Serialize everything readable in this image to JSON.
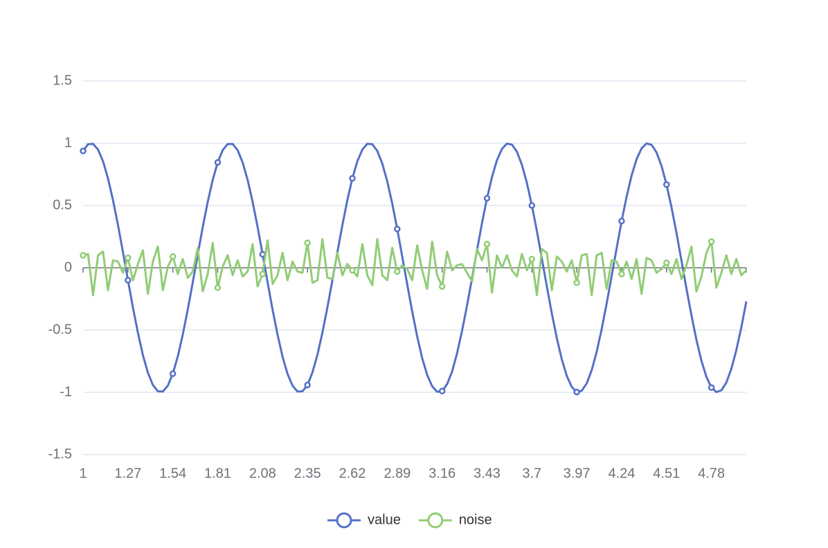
{
  "chart_data": {
    "type": "line",
    "categories": [
      "1",
      "1.03",
      "1.06",
      "1.09",
      "1.12",
      "1.15",
      "1.18",
      "1.21",
      "1.24",
      "1.27",
      "1.3",
      "1.33",
      "1.36",
      "1.39",
      "1.42",
      "1.45",
      "1.48",
      "1.51",
      "1.54",
      "1.57",
      "1.6",
      "1.63",
      "1.66",
      "1.69",
      "1.72",
      "1.75",
      "1.78",
      "1.81",
      "1.84",
      "1.87",
      "1.9",
      "1.93",
      "1.96",
      "1.99",
      "2.02",
      "2.05",
      "2.08",
      "2.11",
      "2.14",
      "2.17",
      "2.2",
      "2.23",
      "2.26",
      "2.29",
      "2.32",
      "2.35",
      "2.38",
      "2.41",
      "2.44",
      "2.47",
      "2.5",
      "2.53",
      "2.56",
      "2.59",
      "2.62",
      "2.65",
      "2.68",
      "2.71",
      "2.74",
      "2.77",
      "2.8",
      "2.83",
      "2.86",
      "2.89",
      "2.92",
      "2.95",
      "2.98",
      "3.01",
      "3.04",
      "3.07",
      "3.1",
      "3.13",
      "3.16",
      "3.19",
      "3.22",
      "3.25",
      "3.28",
      "3.31",
      "3.34",
      "3.37",
      "3.4",
      "3.43",
      "3.46",
      "3.49",
      "3.52",
      "3.55",
      "3.58",
      "3.61",
      "3.64",
      "3.67",
      "3.7",
      "3.73",
      "3.76",
      "3.79",
      "3.82",
      "3.85",
      "3.88",
      "3.91",
      "3.94",
      "3.97",
      "4",
      "4.03",
      "4.06",
      "4.09",
      "4.12",
      "4.15",
      "4.18",
      "4.21",
      "4.24",
      "4.27",
      "4.3",
      "4.33",
      "4.36",
      "4.39",
      "4.42",
      "4.45",
      "4.48",
      "4.51",
      "4.54",
      "4.57",
      "4.6",
      "4.63",
      "4.66",
      "4.69",
      "4.72",
      "4.75",
      "4.78",
      "4.81",
      "4.84",
      "4.87",
      "4.9",
      "4.93",
      "4.96",
      "4.99"
    ],
    "series": [
      {
        "name": "value",
        "color": "#5470c6",
        "values": [
          0.938,
          0.992,
          0.995,
          0.949,
          0.855,
          0.717,
          0.543,
          0.343,
          0.125,
          -0.1,
          -0.32,
          -0.522,
          -0.702,
          -0.843,
          -0.941,
          -0.992,
          -0.994,
          -0.946,
          -0.85,
          -0.711,
          -0.535,
          -0.334,
          -0.116,
          0.108,
          0.327,
          0.53,
          0.706,
          0.846,
          0.944,
          0.994,
          0.994,
          0.944,
          0.845,
          0.705,
          0.529,
          0.327,
          0.108,
          -0.116,
          -0.336,
          -0.537,
          -0.714,
          -0.852,
          -0.946,
          -0.994,
          -0.992,
          -0.941,
          -0.84,
          -0.698,
          -0.52,
          -0.318,
          -0.099,
          0.125,
          0.343,
          0.544,
          0.718,
          0.855,
          0.949,
          0.996,
          0.992,
          0.938,
          0.837,
          0.693,
          0.515,
          0.311,
          0.091,
          -0.133,
          -0.351,
          -0.551,
          -0.725,
          -0.86,
          -0.951,
          -0.996,
          -0.99,
          -0.935,
          -0.833,
          -0.686,
          -0.506,
          -0.302,
          -0.083,
          0.142,
          0.359,
          0.558,
          0.729,
          0.864,
          0.954,
          0.997,
          0.989,
          0.932,
          0.827,
          0.681,
          0.5,
          0.296,
          0.074,
          -0.15,
          -0.367,
          -0.565,
          -0.735,
          -0.868,
          -0.957,
          -0.998,
          -0.987,
          -0.928,
          -0.822,
          -0.674,
          -0.492,
          -0.286,
          -0.066,
          0.158,
          0.375,
          0.572,
          0.741,
          0.872,
          0.959,
          0.998,
          0.987,
          0.926,
          0.818,
          0.668,
          0.486,
          0.28,
          0.057,
          -0.167,
          -0.382,
          -0.579,
          -0.746,
          -0.876,
          -0.962,
          -0.998,
          -0.984,
          -0.921,
          -0.812,
          -0.661,
          -0.478,
          -0.27
        ]
      },
      {
        "name": "noise",
        "color": "#91cc75",
        "values": [
          0.1,
          0.11,
          -0.22,
          0.1,
          0.13,
          -0.18,
          0.06,
          0.05,
          -0.04,
          0.08,
          -0.1,
          0.03,
          0.14,
          -0.21,
          0.05,
          0.17,
          -0.18,
          0.01,
          0.09,
          -0.05,
          0.07,
          -0.08,
          -0.03,
          0.16,
          -0.19,
          -0.05,
          0.2,
          -0.16,
          0.01,
          0.1,
          -0.06,
          0.06,
          -0.07,
          -0.03,
          0.19,
          -0.15,
          -0.05,
          0.22,
          -0.13,
          -0.06,
          0.12,
          -0.1,
          0.05,
          -0.03,
          -0.04,
          0.2,
          -0.12,
          -0.1,
          0.23,
          -0.08,
          -0.09,
          0.12,
          -0.06,
          0.03,
          -0.02,
          -0.07,
          0.19,
          -0.06,
          -0.14,
          0.23,
          -0.06,
          -0.1,
          0.16,
          -0.03,
          0.02,
          -0.01,
          -0.1,
          0.18,
          -0.02,
          -0.17,
          0.21,
          -0.06,
          -0.15,
          0.13,
          -0.02,
          0.02,
          0.03,
          -0.04,
          -0.11,
          0.15,
          0.06,
          0.19,
          -0.2,
          0.1,
          0,
          0.1,
          -0.02,
          -0.07,
          0.11,
          -0.02,
          0.07,
          -0.22,
          0.15,
          0.12,
          -0.18,
          0.09,
          0.05,
          -0.03,
          0.06,
          -0.12,
          0.1,
          0.11,
          -0.22,
          0.1,
          0.12,
          -0.17,
          0.06,
          0.05,
          -0.05,
          0.05,
          -0.09,
          0.07,
          -0.21,
          0.08,
          0.06,
          -0.04,
          -0.01,
          0.04,
          -0.05,
          0.07,
          -0.09,
          0.02,
          0.17,
          -0.19,
          -0.07,
          0.12,
          0.21,
          -0.16,
          -0.04,
          0.1,
          -0.05,
          0.07,
          -0.06,
          -0.02
        ]
      }
    ],
    "ylim": [
      -1.5,
      1.5
    ],
    "yticks": [
      -1.5,
      -1,
      -0.5,
      0,
      0.5,
      1,
      1.5
    ],
    "grid": true,
    "legend": "bottom"
  }
}
